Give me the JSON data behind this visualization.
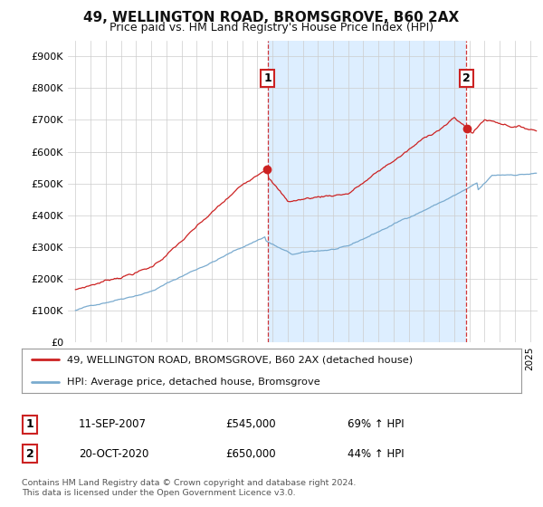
{
  "title": "49, WELLINGTON ROAD, BROMSGROVE, B60 2AX",
  "subtitle": "Price paid vs. HM Land Registry's House Price Index (HPI)",
  "ylim": [
    0,
    950000
  ],
  "yticks": [
    0,
    100000,
    200000,
    300000,
    400000,
    500000,
    600000,
    700000,
    800000,
    900000
  ],
  "ytick_labels": [
    "£0",
    "£100K",
    "£200K",
    "£300K",
    "£400K",
    "£500K",
    "£600K",
    "£700K",
    "£800K",
    "£900K"
  ],
  "price_color": "#cc2222",
  "hpi_color": "#7aabcf",
  "shade_color": "#ddeeff",
  "sale1_date_num": 2007.7,
  "sale1_price": 545000,
  "sale1_label": "1",
  "sale2_date_num": 2020.8,
  "sale2_price": 650000,
  "sale2_label": "2",
  "legend_price_label": "49, WELLINGTON ROAD, BROMSGROVE, B60 2AX (detached house)",
  "legend_hpi_label": "HPI: Average price, detached house, Bromsgrove",
  "annotation1_date": "11-SEP-2007",
  "annotation1_price": "£545,000",
  "annotation1_hpi": "69% ↑ HPI",
  "annotation2_date": "20-OCT-2020",
  "annotation2_price": "£650,000",
  "annotation2_hpi": "44% ↑ HPI",
  "footer": "Contains HM Land Registry data © Crown copyright and database right 2024.\nThis data is licensed under the Open Government Licence v3.0.",
  "background_color": "#ffffff",
  "grid_color": "#cccccc",
  "title_fontsize": 11,
  "subtitle_fontsize": 9
}
